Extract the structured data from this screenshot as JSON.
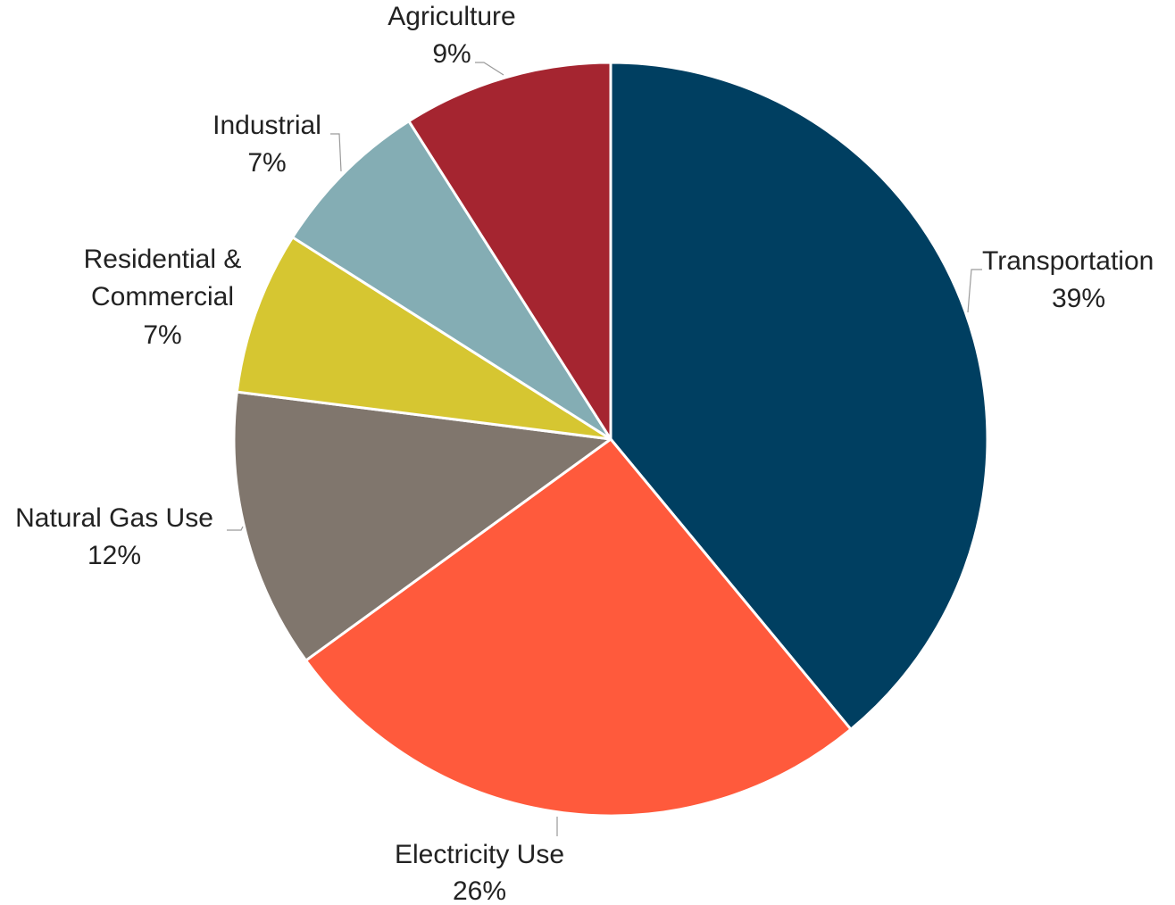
{
  "chart_data": {
    "type": "pie",
    "title": "",
    "legend": "none",
    "slices": [
      {
        "label": "Transportation",
        "value": 39,
        "value_label": "39%",
        "color": "#003f61"
      },
      {
        "label": "Electricity Use",
        "value": 26,
        "value_label": "26%",
        "color": "#ff5a3c"
      },
      {
        "label": "Natural Gas Use",
        "value": 12,
        "value_label": "12%",
        "color": "#80766d"
      },
      {
        "label": "Residential & Commercial",
        "label_lines": [
          "Residential &",
          "Commercial"
        ],
        "value": 7,
        "value_label": "7%",
        "color": "#d6c631"
      },
      {
        "label": "Industrial",
        "value": 7,
        "value_label": "7%",
        "color": "#84adb4"
      },
      {
        "label": "Agriculture",
        "value": 9,
        "value_label": "9%",
        "color": "#a52530"
      }
    ]
  }
}
